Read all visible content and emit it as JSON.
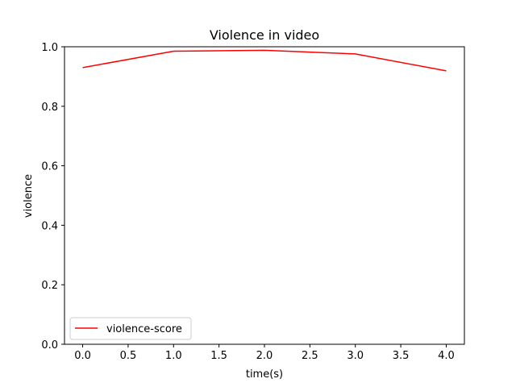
{
  "chart_data": {
    "type": "line",
    "title": "Violence in video",
    "xlabel": "time(s)",
    "ylabel": "violence",
    "xlim": [
      -0.2,
      4.2
    ],
    "ylim": [
      0.0,
      1.0
    ],
    "xticks": [
      0.0,
      0.5,
      1.0,
      1.5,
      2.0,
      2.5,
      3.0,
      3.5,
      4.0
    ],
    "xtick_labels": [
      "0.0",
      "0.5",
      "1.0",
      "1.5",
      "2.0",
      "2.5",
      "3.0",
      "3.5",
      "4.0"
    ],
    "yticks": [
      0.0,
      0.2,
      0.4,
      0.6,
      0.8,
      1.0
    ],
    "ytick_labels": [
      "0.0",
      "0.2",
      "0.4",
      "0.6",
      "0.8",
      "1.0"
    ],
    "grid": false,
    "legend_position": "lower-left",
    "series": [
      {
        "name": "violence-score",
        "color": "#ff0000",
        "x": [
          0,
          1,
          2,
          3,
          4
        ],
        "y": [
          0.93,
          0.985,
          0.988,
          0.976,
          0.919
        ]
      }
    ]
  }
}
